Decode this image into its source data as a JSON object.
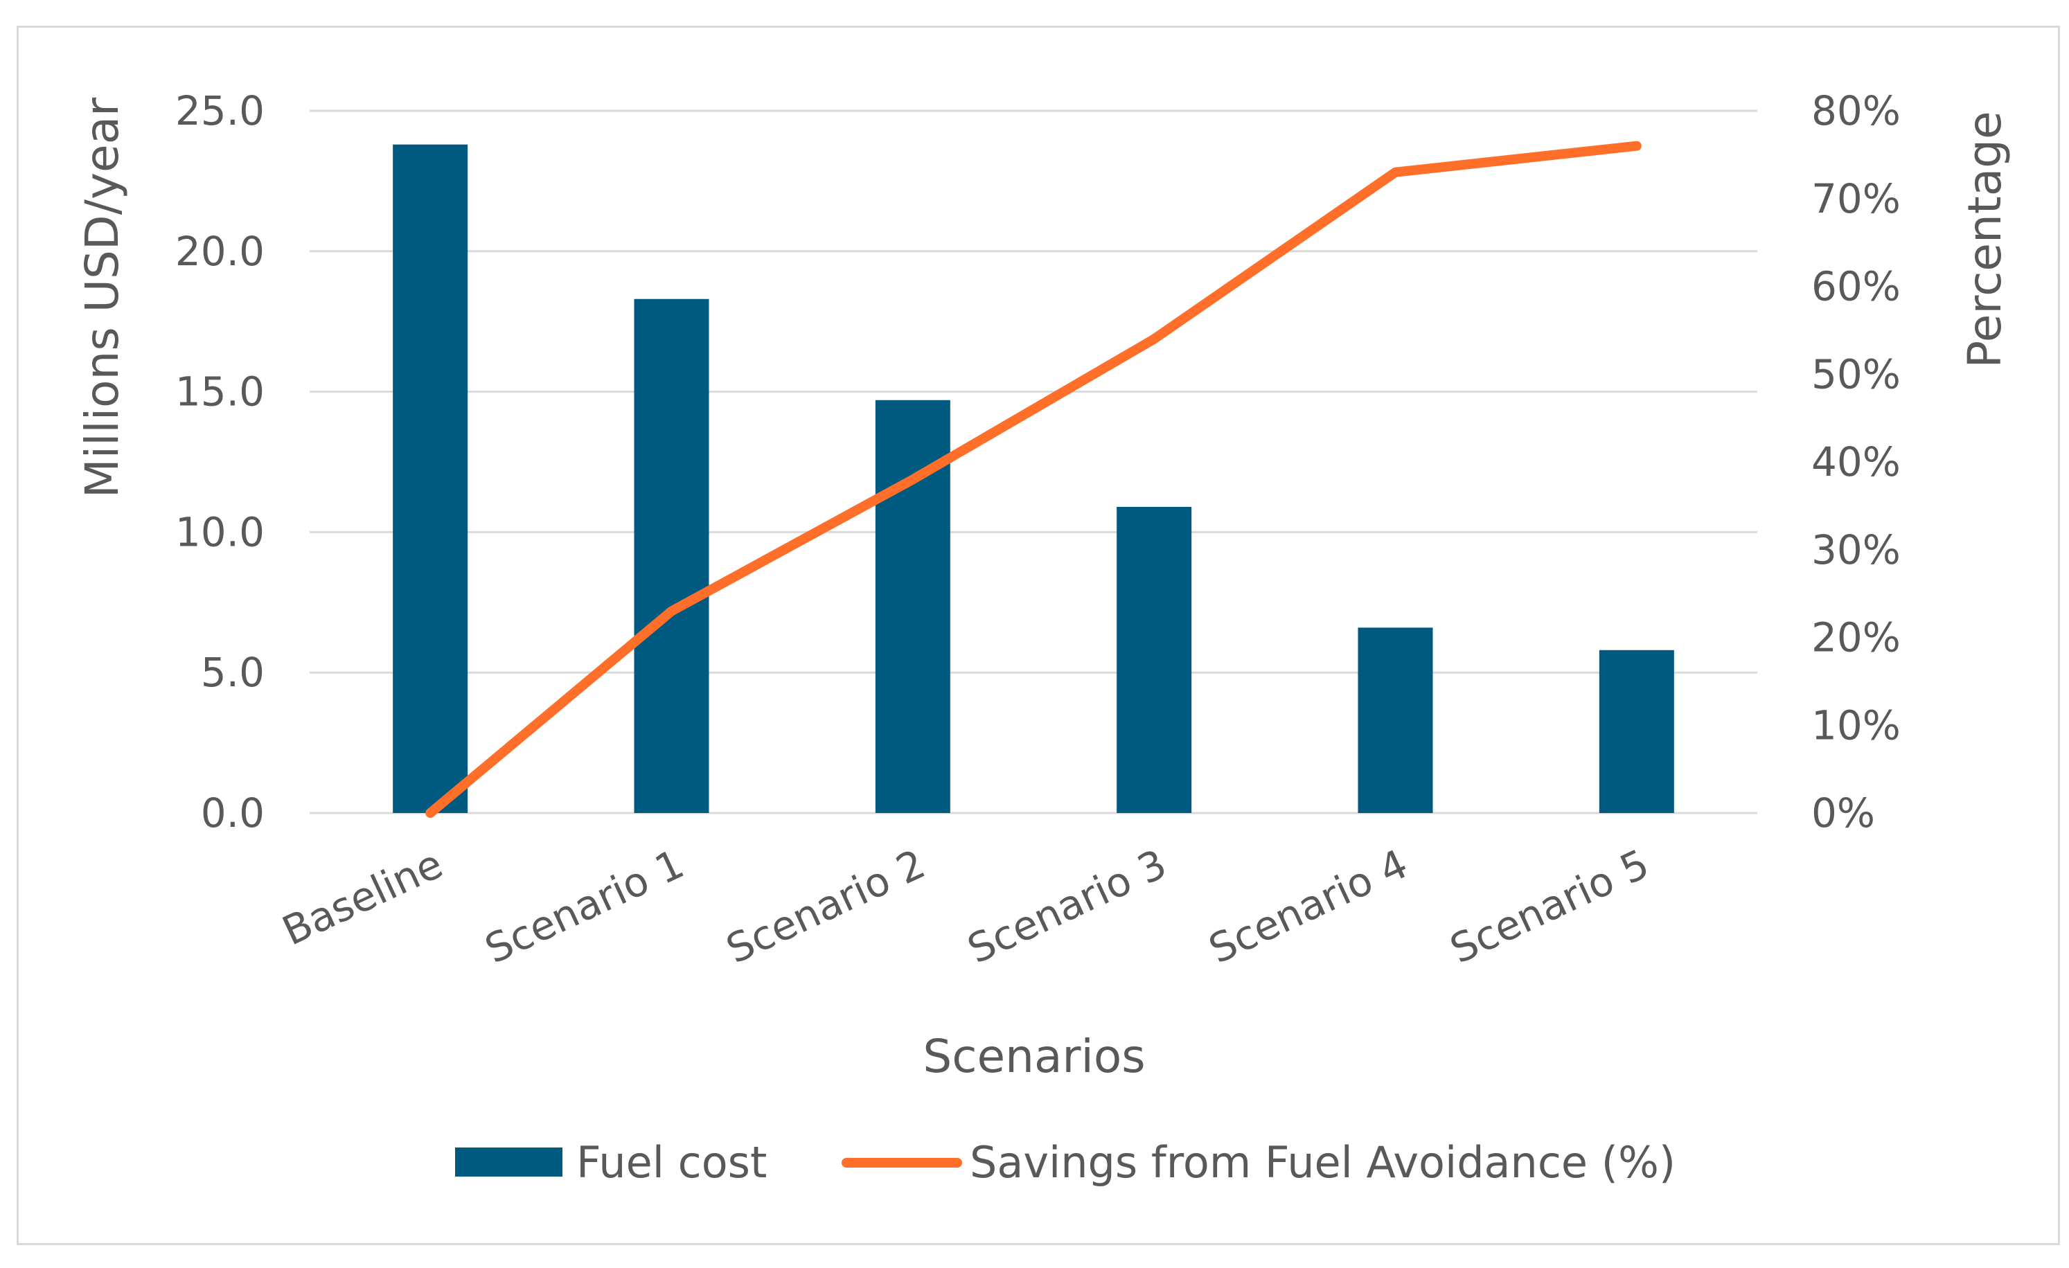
{
  "chart_data": {
    "type": "bar",
    "categories": [
      "Baseline",
      "Scenario 1",
      "Scenario 2",
      "Scenario 3",
      "Scenario 4",
      "Scenario 5"
    ],
    "series": [
      {
        "name": "Fuel cost",
        "type": "bar",
        "axis": "left",
        "color": "#005a80",
        "values": [
          23.8,
          18.3,
          14.7,
          10.9,
          6.6,
          5.8
        ]
      },
      {
        "name": "Savings from Fuel Avoidance (%)",
        "type": "line",
        "axis": "right",
        "color": "#ff6f29",
        "values": [
          0,
          23,
          38,
          54,
          73,
          76
        ]
      }
    ],
    "title": "",
    "xlabel": "Scenarios",
    "ylabel": "Millions USD/year",
    "y2label": "Percentage",
    "ylim": [
      0,
      25
    ],
    "yticks": [
      "0.0",
      "5.0",
      "10.0",
      "15.0",
      "20.0",
      "25.0"
    ],
    "y2lim": [
      0,
      80
    ],
    "y2ticks": [
      "0%",
      "10%",
      "20%",
      "30%",
      "40%",
      "50%",
      "60%",
      "70%",
      "80%"
    ],
    "grid": true,
    "legend_position": "bottom",
    "gridline_color": "#d9d9d9"
  }
}
